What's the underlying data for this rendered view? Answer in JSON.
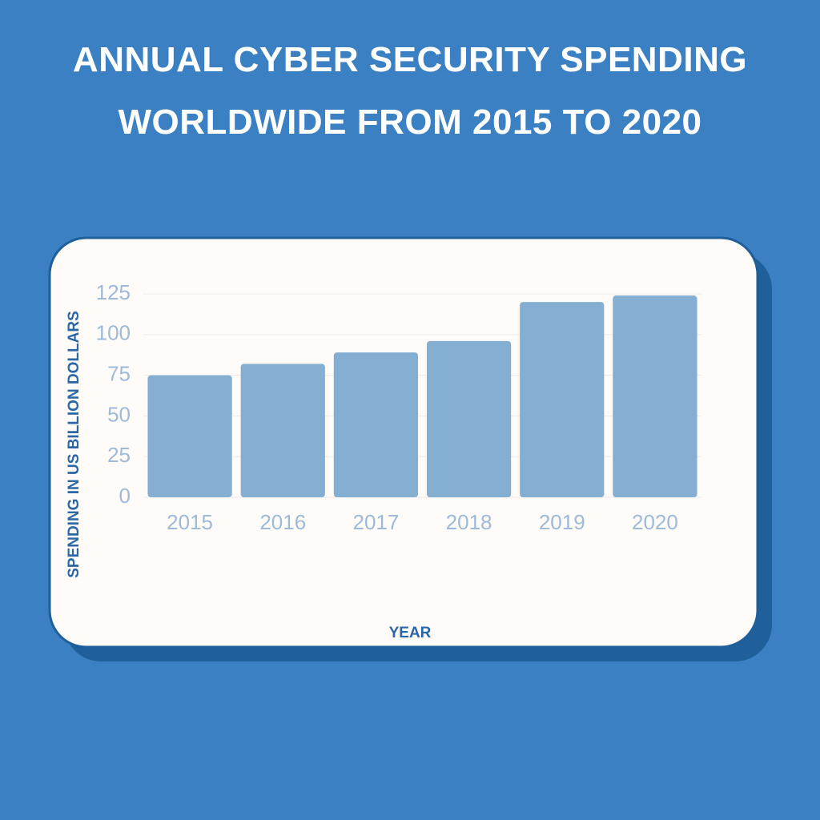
{
  "chart_data": {
    "type": "bar",
    "title": "ANNUAL CYBER SECURITY SPENDING WORLDWIDE FROM 2015 TO 2020",
    "x_label": "YEAR",
    "y_label": "SPENDING IN US BILLION DOLLARS",
    "categories": [
      "2015",
      "2016",
      "2017",
      "2018",
      "2019",
      "2020"
    ],
    "values": [
      75,
      82,
      89,
      96,
      120,
      124
    ],
    "color": "#85aed3",
    "ylim": [
      0,
      125
    ],
    "yticks": [
      0,
      25,
      50,
      75,
      100,
      125
    ],
    "grid": true
  }
}
